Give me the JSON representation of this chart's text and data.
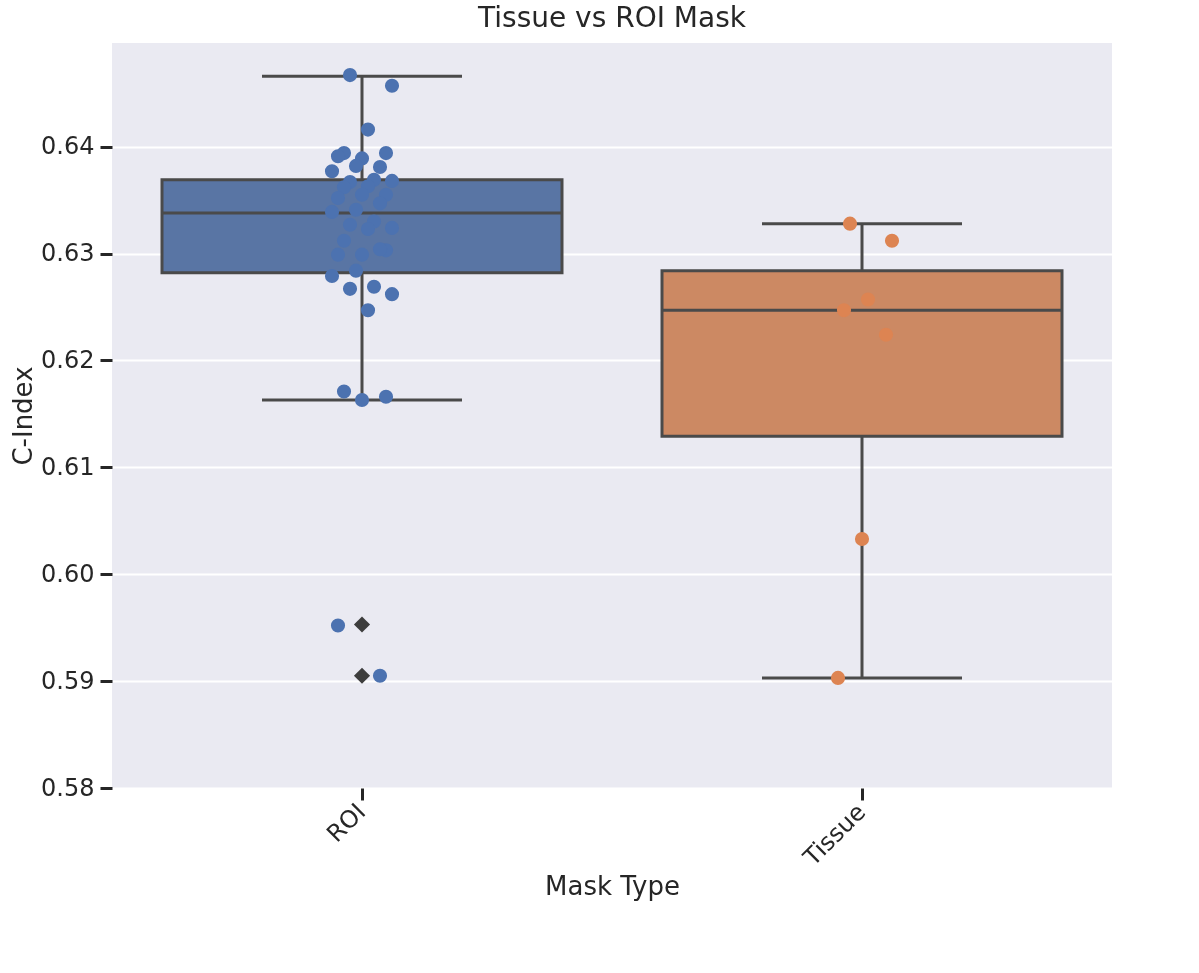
{
  "chart_data": {
    "type": "box",
    "title": "Tissue vs ROI Mask",
    "xlabel": "Mask Type",
    "ylabel": "C-Index",
    "categories": [
      "ROI",
      "Tissue"
    ],
    "ylim": [
      0.58,
      0.6497
    ],
    "yticks": [
      0.58,
      0.59,
      {
        "value": 0.6,
        "label": "0.60"
      },
      0.61,
      0.62,
      0.63,
      0.64
    ],
    "grid": "y",
    "marker": "circle",
    "series": [
      {
        "colors": [
          "#5975a4",
          "#cc8963"
        ],
        "boxes": [
          {
            "low": 0.6163,
            "q1": 0.6282,
            "median": 0.6338,
            "q3": 0.6369,
            "high": 0.6466,
            "outliers": [
              0.5953,
              0.5905
            ]
          },
          {
            "low": 0.5903,
            "q1": 0.6129,
            "median": 0.6247,
            "q3": 0.6284,
            "high": 0.6328
          }
        ]
      },
      {
        "type": "scatter",
        "color": "#4c72b0",
        "x": [
          "ROI",
          "ROI",
          "ROI",
          "ROI",
          "ROI",
          "ROI",
          "ROI",
          "ROI",
          "ROI",
          "ROI",
          "ROI",
          "ROI",
          "ROI",
          "ROI",
          "ROI",
          "ROI",
          "ROI",
          "ROI",
          "ROI",
          "ROI",
          "ROI",
          "ROI",
          "ROI",
          "ROI",
          "ROI",
          "ROI",
          "ROI",
          "ROI",
          "ROI",
          "ROI",
          "ROI",
          "ROI",
          "ROI",
          "ROI",
          "ROI",
          "ROI",
          "ROI",
          "ROI",
          "ROI",
          "ROI",
          "ROI"
        ],
        "values": [
          0.6467,
          0.6457,
          0.6416,
          0.6394,
          0.6394,
          0.6389,
          0.6391,
          0.6381,
          0.6382,
          0.6377,
          0.6369,
          0.6367,
          0.6368,
          0.6363,
          0.6362,
          0.6355,
          0.6355,
          0.6352,
          0.6347,
          0.6341,
          0.6339,
          0.633,
          0.6327,
          0.6324,
          0.6323,
          0.6312,
          0.6303,
          0.6299,
          0.6299,
          0.6304,
          0.6284,
          0.6279,
          0.6269,
          0.6267,
          0.6262,
          0.6247,
          0.6171,
          0.6166,
          0.6163,
          0.5952,
          0.5905
        ]
      },
      {
        "type": "scatter",
        "color": "#dd8452",
        "x": [
          "Tissue",
          "Tissue",
          "Tissue",
          "Tissue",
          "Tissue",
          "Tissue",
          "Tissue"
        ],
        "values": [
          0.6328,
          0.6312,
          0.6257,
          0.6247,
          0.6224,
          0.6033,
          0.5903
        ]
      }
    ]
  }
}
